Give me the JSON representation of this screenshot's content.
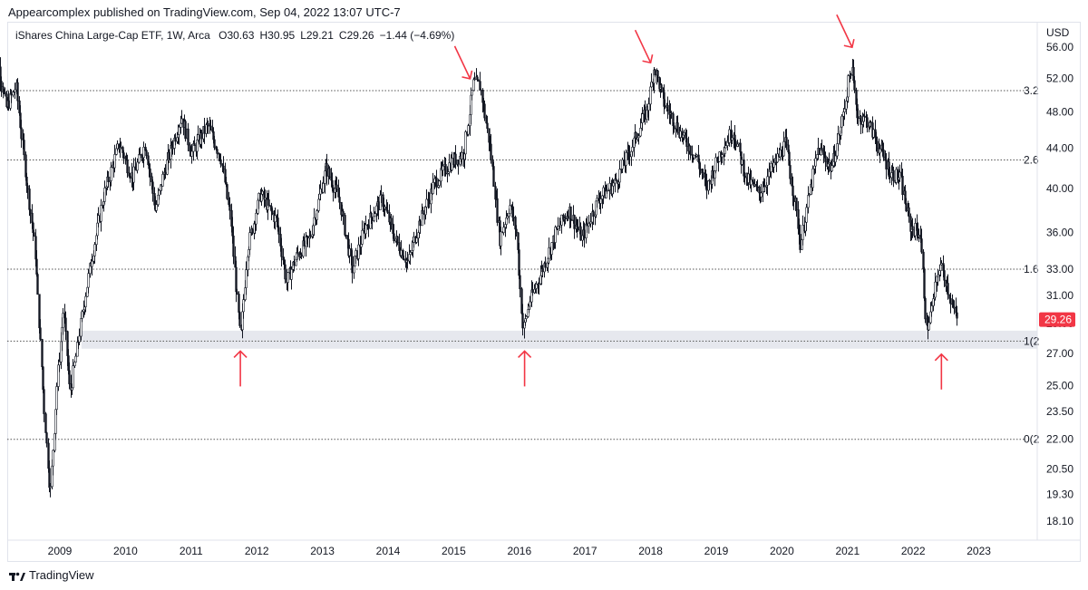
{
  "header": {
    "publisher": "Appearcomplex published on TradingView.com, Sep 04, 2022 13:07 UTC-7"
  },
  "legend": {
    "symbol": "iShares China Large-Cap ETF, 1W, Arca",
    "open_label": "O",
    "open": "30.63",
    "high_label": "H",
    "high": "30.95",
    "low_label": "L",
    "low": "29.21",
    "close_label": "C",
    "close": "29.26",
    "change": "−1.44 (−4.69%)"
  },
  "footer": {
    "brand": "TradingView"
  },
  "colors": {
    "candles": "#131722",
    "arrows": "#f23645",
    "price_badge": "#f23645",
    "support_zone": "#e6e8ee",
    "fib_lines": "#555555"
  },
  "chart_data": {
    "type": "candlestick",
    "currency": "USD",
    "scale": "log",
    "ylim": [
      17.3,
      59.5
    ],
    "y_ticks": [
      18.1,
      19.3,
      20.5,
      22.0,
      23.5,
      25.0,
      27.0,
      29.0,
      31.0,
      33.0,
      36.0,
      40.0,
      44.0,
      48.0,
      52.0,
      56.0
    ],
    "y_tick_labels": [
      "18.10",
      "19.30",
      "20.50",
      "22.00",
      "23.50",
      "25.00",
      "27.00",
      "29.00",
      "31.00",
      "33.00",
      "36.00",
      "40.00",
      "44.00",
      "48.00",
      "52.00",
      "56.00"
    ],
    "x_labels": [
      "2009",
      "2010",
      "2011",
      "2012",
      "2013",
      "2014",
      "2015",
      "2016",
      "2017",
      "2018",
      "2019",
      "2020",
      "2021",
      "2022",
      "2023"
    ],
    "last_price": "29.26",
    "fib_levels": [
      {
        "label": "3.2",
        "price": 50.5
      },
      {
        "label": "2.6",
        "price": 42.8
      },
      {
        "label": "1.6",
        "price": 33.0
      },
      {
        "label": "1(2",
        "price": 27.8
      },
      {
        "label": "0(2",
        "price": 22.0
      }
    ],
    "support_zone": {
      "low": 27.3,
      "high": 28.5,
      "from": 2009.33
    },
    "pivots": [
      {
        "t": 2007.95,
        "p": 47.0
      },
      {
        "t": 2008.05,
        "p": 54.0
      },
      {
        "t": 2008.18,
        "p": 48.5
      },
      {
        "t": 2008.33,
        "p": 51.0
      },
      {
        "t": 2008.5,
        "p": 40.0
      },
      {
        "t": 2008.62,
        "p": 34.5
      },
      {
        "t": 2008.75,
        "p": 24.0
      },
      {
        "t": 2008.85,
        "p": 19.3
      },
      {
        "t": 2008.95,
        "p": 25.0
      },
      {
        "t": 2009.05,
        "p": 30.0
      },
      {
        "t": 2009.15,
        "p": 24.5
      },
      {
        "t": 2009.3,
        "p": 28.5
      },
      {
        "t": 2009.45,
        "p": 33.0
      },
      {
        "t": 2009.65,
        "p": 39.0
      },
      {
        "t": 2009.9,
        "p": 44.5
      },
      {
        "t": 2010.1,
        "p": 41.0
      },
      {
        "t": 2010.3,
        "p": 44.5
      },
      {
        "t": 2010.45,
        "p": 38.0
      },
      {
        "t": 2010.6,
        "p": 42.0
      },
      {
        "t": 2010.85,
        "p": 47.5
      },
      {
        "t": 2011.0,
        "p": 43.5
      },
      {
        "t": 2011.25,
        "p": 46.5
      },
      {
        "t": 2011.45,
        "p": 43.0
      },
      {
        "t": 2011.6,
        "p": 37.0
      },
      {
        "t": 2011.75,
        "p": 27.8
      },
      {
        "t": 2011.85,
        "p": 34.5
      },
      {
        "t": 2012.05,
        "p": 39.5
      },
      {
        "t": 2012.3,
        "p": 37.0
      },
      {
        "t": 2012.45,
        "p": 32.0
      },
      {
        "t": 2012.6,
        "p": 34.0
      },
      {
        "t": 2012.8,
        "p": 35.5
      },
      {
        "t": 2013.05,
        "p": 42.0
      },
      {
        "t": 2013.25,
        "p": 39.0
      },
      {
        "t": 2013.45,
        "p": 33.0
      },
      {
        "t": 2013.65,
        "p": 36.5
      },
      {
        "t": 2013.9,
        "p": 39.0
      },
      {
        "t": 2014.1,
        "p": 35.5
      },
      {
        "t": 2014.3,
        "p": 33.5
      },
      {
        "t": 2014.45,
        "p": 36.5
      },
      {
        "t": 2014.7,
        "p": 40.5
      },
      {
        "t": 2014.95,
        "p": 42.5
      },
      {
        "t": 2015.15,
        "p": 43.5
      },
      {
        "t": 2015.3,
        "p": 51.5
      },
      {
        "t": 2015.4,
        "p": 51.0
      },
      {
        "t": 2015.55,
        "p": 44.0
      },
      {
        "t": 2015.7,
        "p": 35.5
      },
      {
        "t": 2015.85,
        "p": 38.5
      },
      {
        "t": 2015.95,
        "p": 36.0
      },
      {
        "t": 2016.05,
        "p": 28.5
      },
      {
        "t": 2016.15,
        "p": 30.5
      },
      {
        "t": 2016.35,
        "p": 33.0
      },
      {
        "t": 2016.55,
        "p": 36.0
      },
      {
        "t": 2016.75,
        "p": 38.0
      },
      {
        "t": 2016.95,
        "p": 35.5
      },
      {
        "t": 2017.2,
        "p": 39.0
      },
      {
        "t": 2017.45,
        "p": 40.5
      },
      {
        "t": 2017.7,
        "p": 44.0
      },
      {
        "t": 2017.95,
        "p": 48.5
      },
      {
        "t": 2018.05,
        "p": 53.5
      },
      {
        "t": 2018.2,
        "p": 49.0
      },
      {
        "t": 2018.35,
        "p": 47.0
      },
      {
        "t": 2018.5,
        "p": 45.0
      },
      {
        "t": 2018.7,
        "p": 43.0
      },
      {
        "t": 2018.85,
        "p": 40.0
      },
      {
        "t": 2019.05,
        "p": 43.5
      },
      {
        "t": 2019.25,
        "p": 46.0
      },
      {
        "t": 2019.45,
        "p": 41.0
      },
      {
        "t": 2019.65,
        "p": 39.5
      },
      {
        "t": 2019.85,
        "p": 42.0
      },
      {
        "t": 2020.05,
        "p": 44.5
      },
      {
        "t": 2020.2,
        "p": 38.5
      },
      {
        "t": 2020.28,
        "p": 35.0
      },
      {
        "t": 2020.4,
        "p": 39.0
      },
      {
        "t": 2020.55,
        "p": 44.0
      },
      {
        "t": 2020.75,
        "p": 42.0
      },
      {
        "t": 2020.9,
        "p": 46.5
      },
      {
        "t": 2021.05,
        "p": 53.5
      },
      {
        "t": 2021.15,
        "p": 47.5
      },
      {
        "t": 2021.3,
        "p": 47.0
      },
      {
        "t": 2021.45,
        "p": 44.5
      },
      {
        "t": 2021.65,
        "p": 41.5
      },
      {
        "t": 2021.8,
        "p": 41.0
      },
      {
        "t": 2021.95,
        "p": 36.5
      },
      {
        "t": 2022.1,
        "p": 36.0
      },
      {
        "t": 2022.2,
        "p": 28.5
      },
      {
        "t": 2022.3,
        "p": 30.5
      },
      {
        "t": 2022.4,
        "p": 33.5
      },
      {
        "t": 2022.5,
        "p": 32.0
      },
      {
        "t": 2022.6,
        "p": 30.0
      },
      {
        "t": 2022.67,
        "p": 29.26
      }
    ],
    "annotation_arrows": [
      {
        "direction": "down",
        "t": 2015.25,
        "p": 51.5
      },
      {
        "direction": "down",
        "t": 2018.0,
        "p": 53.5
      },
      {
        "direction": "down",
        "t": 2021.07,
        "p": 55.5
      },
      {
        "direction": "up",
        "t": 2011.75,
        "p": 27.5
      },
      {
        "direction": "up",
        "t": 2016.08,
        "p": 27.5
      },
      {
        "direction": "up",
        "t": 2022.43,
        "p": 27.3
      }
    ]
  }
}
